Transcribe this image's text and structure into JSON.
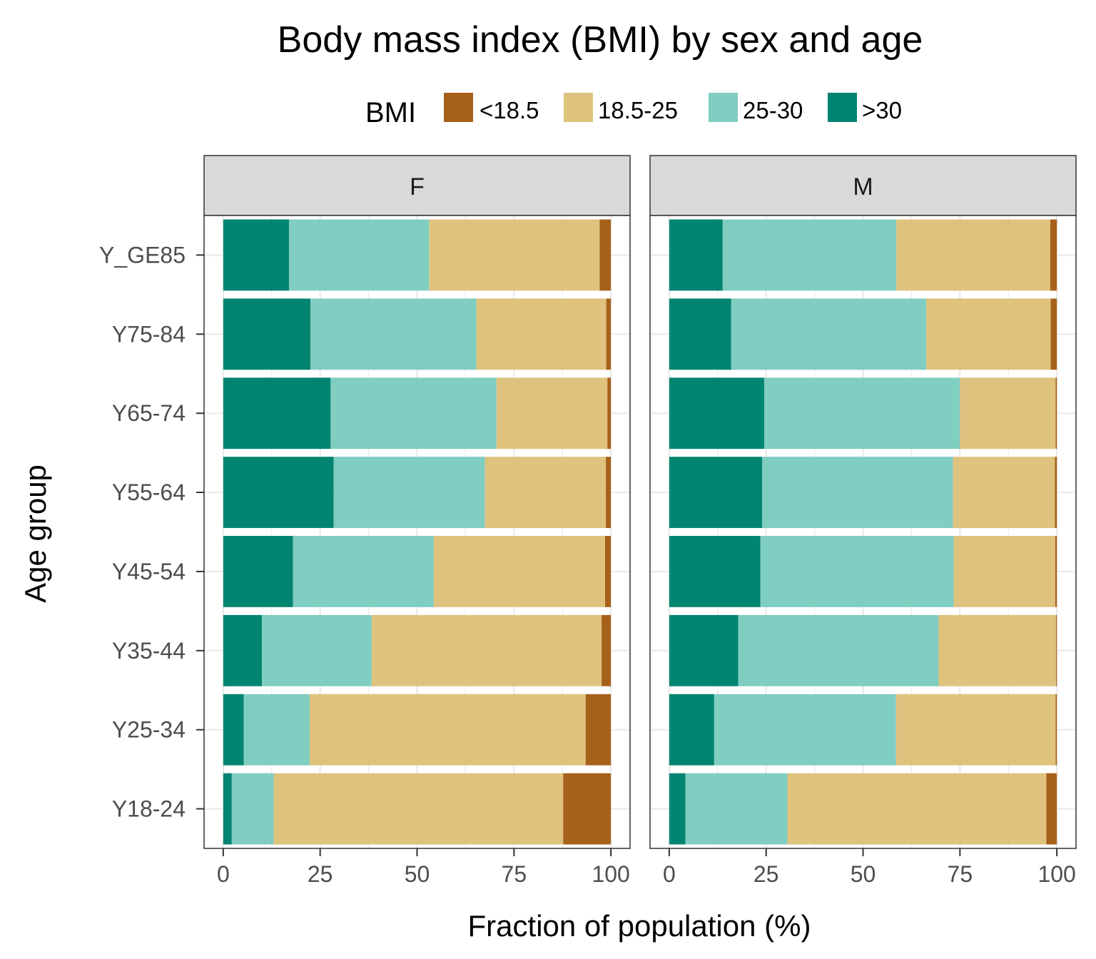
{
  "chart_data": {
    "type": "bar",
    "orientation": "horizontal",
    "stacked": true,
    "title": "Body mass index (BMI) by sex and age",
    "xlabel": "Fraction of population (%)",
    "ylabel": "Age group",
    "xlim": [
      0,
      100
    ],
    "x_ticks": [
      "0",
      "25",
      "50",
      "75",
      "100"
    ],
    "grid": true,
    "legend": {
      "title": "BMI",
      "position": "top",
      "entries": [
        {
          "label": "<18.5",
          "color": "#a6611a"
        },
        {
          "label": "18.5-25",
          "color": "#dfc27d"
        },
        {
          "label": "25-30",
          "color": "#80cdc1"
        },
        {
          "label": ">30",
          "color": "#018571"
        }
      ]
    },
    "categories": [
      "Y_GE85",
      "Y75-84",
      "Y65-74",
      "Y55-64",
      "Y45-54",
      "Y35-44",
      "Y25-34",
      "Y18-24"
    ],
    "facets": [
      {
        "label": "F",
        "series": [
          {
            "name": ">30",
            "values": [
              17.0,
              22.5,
              27.7,
              28.5,
              18.0,
              10.0,
              5.3,
              2.2
            ]
          },
          {
            "name": "25-30",
            "values": [
              36.1,
              42.8,
              42.8,
              39.0,
              36.3,
              28.3,
              17.0,
              10.8
            ]
          },
          {
            "name": "18.5-25",
            "values": [
              44.0,
              33.5,
              28.6,
              31.2,
              44.2,
              59.3,
              71.2,
              74.7
            ]
          },
          {
            "name": "<18.5",
            "values": [
              2.9,
              1.2,
              0.9,
              1.3,
              1.5,
              2.4,
              6.5,
              12.3
            ]
          }
        ]
      },
      {
        "label": "M",
        "series": [
          {
            "name": ">30",
            "values": [
              13.8,
              16.0,
              24.5,
              24.0,
              23.5,
              17.8,
              11.6,
              4.2
            ]
          },
          {
            "name": "25-30",
            "values": [
              44.8,
              50.3,
              50.5,
              49.2,
              49.9,
              51.7,
              46.9,
              26.3
            ]
          },
          {
            "name": "18.5-25",
            "values": [
              39.7,
              32.1,
              24.7,
              26.3,
              26.2,
              30.3,
              41.2,
              66.8
            ]
          },
          {
            "name": "<18.5",
            "values": [
              1.7,
              1.6,
              0.3,
              0.5,
              0.4,
              0.2,
              0.3,
              2.7
            ]
          }
        ]
      }
    ]
  }
}
